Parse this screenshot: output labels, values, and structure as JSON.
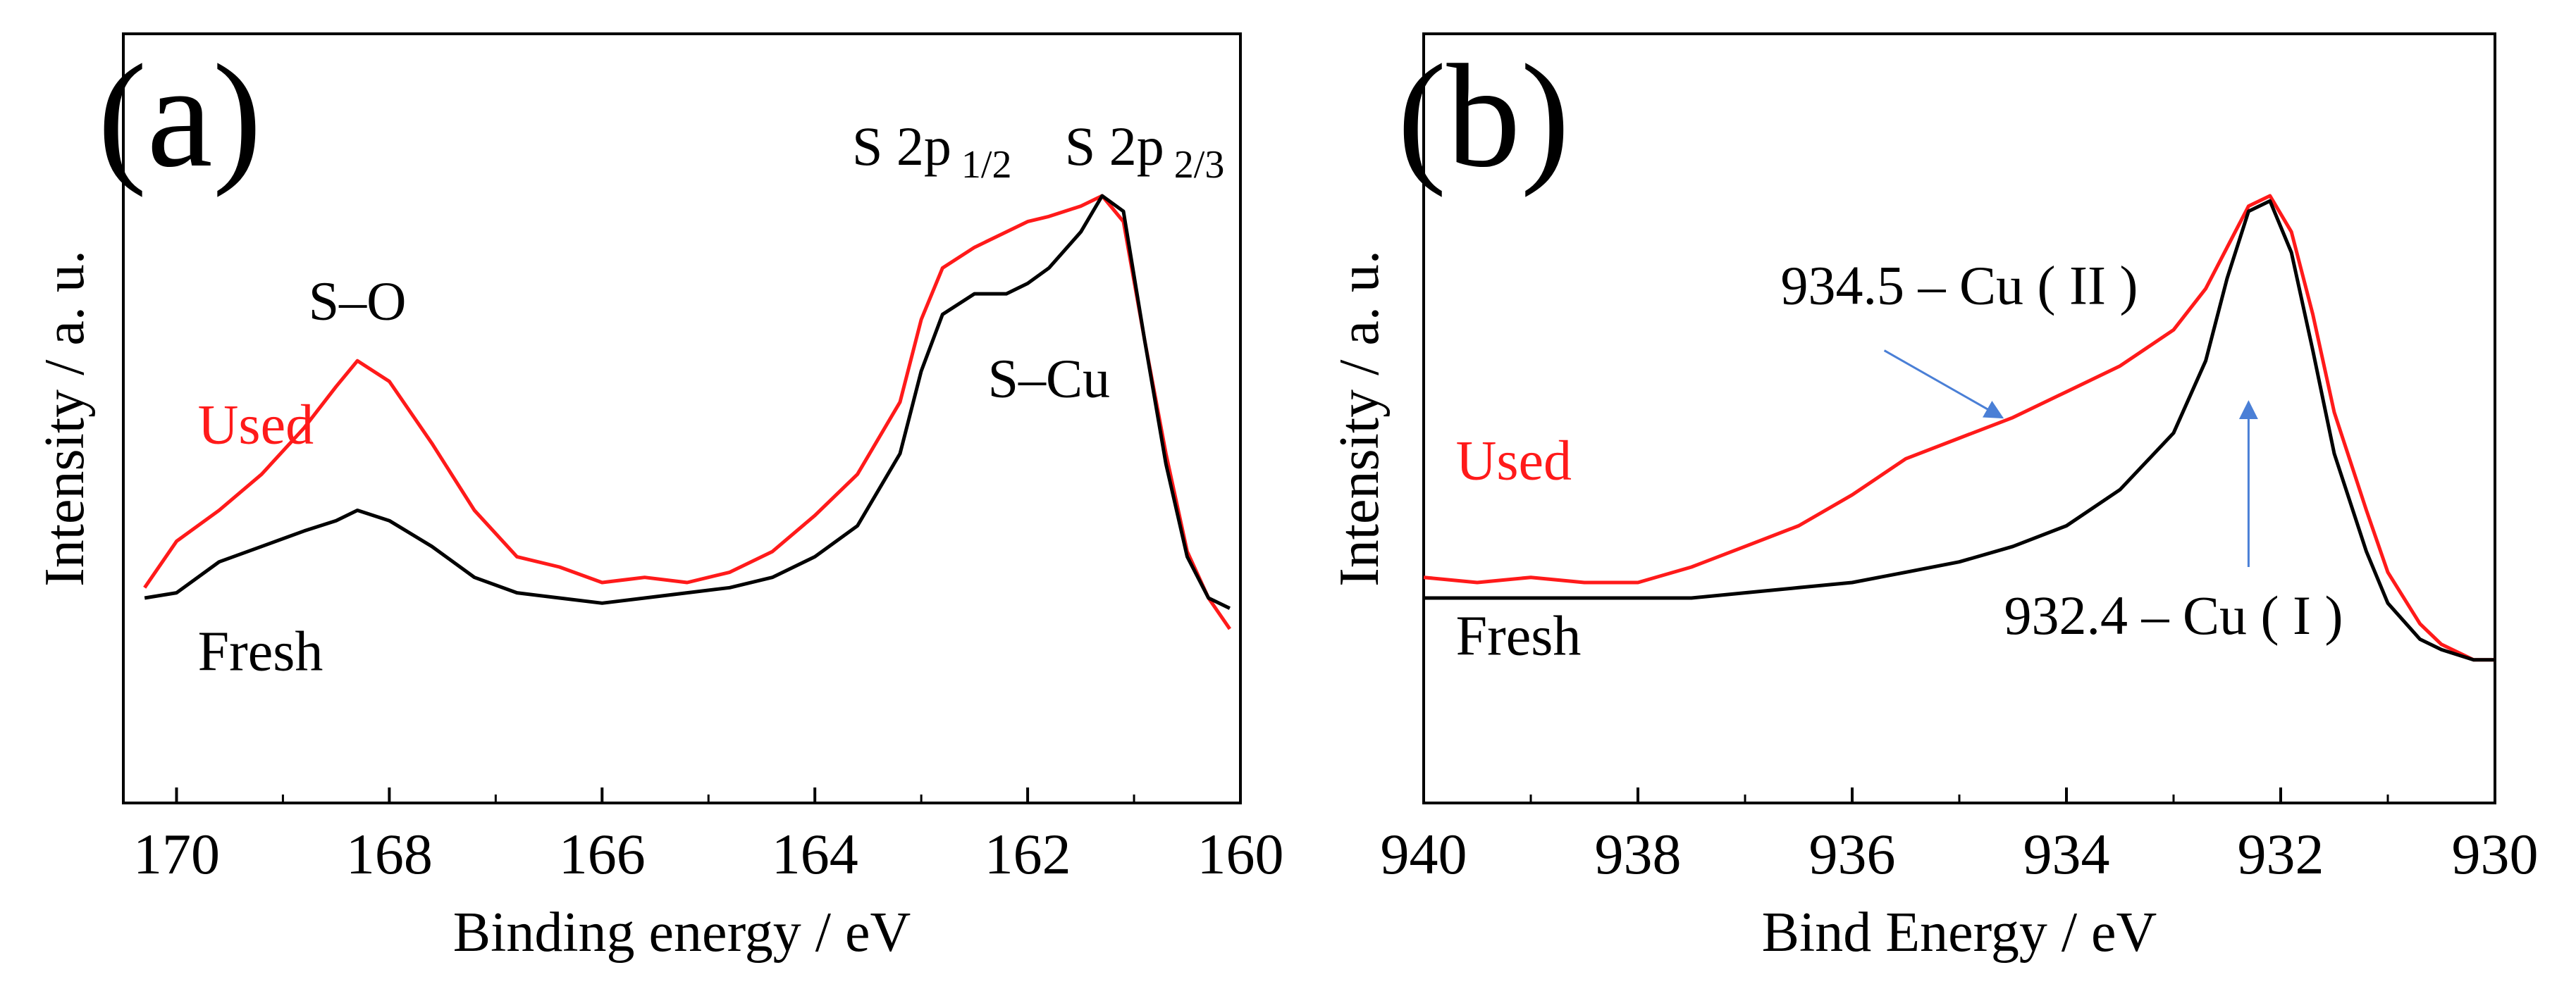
{
  "colors": {
    "used": "#ff1a1a",
    "fresh": "#000000",
    "arrow": "#4a7fd6",
    "axis": "#000000"
  },
  "chart_data": [
    {
      "type": "line",
      "panel_label": "(a)",
      "title": "",
      "xlabel": "Binding energy / eV",
      "ylabel": "Intensity / a. u.",
      "xlim": [
        170.5,
        160
      ],
      "x_reversed": true,
      "ylim": [
        0,
        1
      ],
      "y_ticks_shown": false,
      "xticks": [
        170,
        168,
        166,
        164,
        162,
        160
      ],
      "xtick_labels": [
        "170",
        "168",
        "166",
        "164",
        "162",
        "160"
      ],
      "series": [
        {
          "name": "Used",
          "color": "#ff1a1a",
          "x": [
            170.3,
            170.0,
            169.6,
            169.2,
            168.8,
            168.5,
            168.3,
            168.0,
            167.6,
            167.2,
            166.8,
            166.4,
            166.0,
            165.6,
            165.2,
            164.8,
            164.4,
            164.0,
            163.6,
            163.2,
            163.0,
            162.8,
            162.5,
            162.2,
            162.0,
            161.8,
            161.5,
            161.3,
            161.1,
            160.9,
            160.7,
            160.5,
            160.3,
            160.1
          ],
          "y": [
            0.24,
            0.33,
            0.39,
            0.46,
            0.55,
            0.63,
            0.68,
            0.64,
            0.52,
            0.39,
            0.3,
            0.28,
            0.25,
            0.26,
            0.25,
            0.27,
            0.31,
            0.38,
            0.46,
            0.6,
            0.76,
            0.86,
            0.9,
            0.93,
            0.95,
            0.96,
            0.98,
            1.0,
            0.95,
            0.72,
            0.5,
            0.31,
            0.22,
            0.16
          ]
        },
        {
          "name": "Fresh",
          "color": "#000000",
          "x": [
            170.3,
            170.0,
            169.6,
            169.2,
            168.8,
            168.5,
            168.3,
            168.0,
            167.6,
            167.2,
            166.8,
            166.4,
            166.0,
            165.6,
            165.2,
            164.8,
            164.4,
            164.0,
            163.6,
            163.2,
            163.0,
            162.8,
            162.5,
            162.2,
            162.0,
            161.8,
            161.5,
            161.3,
            161.1,
            160.9,
            160.7,
            160.5,
            160.3,
            160.1
          ],
          "y": [
            0.22,
            0.23,
            0.29,
            0.32,
            0.35,
            0.37,
            0.39,
            0.37,
            0.32,
            0.26,
            0.23,
            0.22,
            0.21,
            0.22,
            0.23,
            0.24,
            0.26,
            0.3,
            0.36,
            0.5,
            0.66,
            0.77,
            0.81,
            0.81,
            0.83,
            0.86,
            0.93,
            1.0,
            0.97,
            0.72,
            0.48,
            0.3,
            0.22,
            0.2
          ]
        }
      ],
      "annotations": [
        {
          "name": "s-o-label",
          "text": "S–O",
          "x": 168.3,
          "y": 0.76
        },
        {
          "name": "s-cu-label",
          "text": "S–Cu",
          "x": 161.8,
          "y": 0.61
        },
        {
          "name": "s2p12-label",
          "text": "S 2p",
          "sub": "1/2",
          "x": 162.9,
          "y": 1.06
        },
        {
          "name": "s2p23-label",
          "text": "S 2p",
          "sub": "2/3",
          "x": 160.9,
          "y": 1.06
        }
      ],
      "legend": [
        {
          "text": "Used",
          "color": "#ff1a1a",
          "x": 169.8,
          "y": 0.52
        },
        {
          "text": "Fresh",
          "color": "#000000",
          "x": 169.8,
          "y": 0.08
        }
      ]
    },
    {
      "type": "line",
      "panel_label": "(b)",
      "title": "",
      "xlabel": "Bind Energy / eV",
      "ylabel": "Intensity / a. u.",
      "xlim": [
        940,
        930
      ],
      "x_reversed": true,
      "ylim": [
        0,
        1
      ],
      "y_ticks_shown": false,
      "xticks": [
        940,
        938,
        936,
        934,
        932,
        930
      ],
      "xtick_labels": [
        "940",
        "938",
        "936",
        "934",
        "932",
        "930"
      ],
      "series": [
        {
          "name": "Used",
          "color": "#ff1a1a",
          "x": [
            940.0,
            939.5,
            939.0,
            938.5,
            938.0,
            937.5,
            937.0,
            936.5,
            936.0,
            935.5,
            935.0,
            934.5,
            934.0,
            933.5,
            933.0,
            932.7,
            932.5,
            932.3,
            932.1,
            931.9,
            931.7,
            931.5,
            931.2,
            931.0,
            930.7,
            930.5,
            930.2,
            930.0
          ],
          "y": [
            0.26,
            0.25,
            0.26,
            0.25,
            0.25,
            0.28,
            0.32,
            0.36,
            0.42,
            0.49,
            0.53,
            0.57,
            0.62,
            0.67,
            0.74,
            0.82,
            0.9,
            0.98,
            1.0,
            0.93,
            0.77,
            0.58,
            0.39,
            0.27,
            0.17,
            0.13,
            0.1,
            0.1
          ]
        },
        {
          "name": "Fresh",
          "color": "#000000",
          "x": [
            940.0,
            939.5,
            939.0,
            938.5,
            938.0,
            937.5,
            937.0,
            936.5,
            936.0,
            935.5,
            935.0,
            934.5,
            934.0,
            933.5,
            933.0,
            932.7,
            932.5,
            932.3,
            932.1,
            931.9,
            931.7,
            931.5,
            931.2,
            931.0,
            930.7,
            930.5,
            930.2,
            930.0
          ],
          "y": [
            0.22,
            0.22,
            0.22,
            0.22,
            0.22,
            0.22,
            0.23,
            0.24,
            0.25,
            0.27,
            0.29,
            0.32,
            0.36,
            0.43,
            0.54,
            0.68,
            0.84,
            0.97,
            0.99,
            0.89,
            0.7,
            0.5,
            0.31,
            0.21,
            0.14,
            0.12,
            0.1,
            0.1
          ]
        }
      ],
      "annotations": [
        {
          "name": "cu-ii-label",
          "text": "934.5 – Cu ( II )",
          "x": 935.0,
          "y": 0.79
        },
        {
          "name": "cu-i-label",
          "text": "932.4 – Cu ( I )",
          "x": 933.0,
          "y": 0.15
        }
      ],
      "arrows": [
        {
          "name": "cu-ii-arrow",
          "x1": 935.7,
          "y1": 0.7,
          "x2": 934.6,
          "y2": 0.57
        },
        {
          "name": "cu-i-arrow",
          "x1": 932.3,
          "y1": 0.28,
          "x2": 932.3,
          "y2": 0.6
        }
      ],
      "legend": [
        {
          "text": "Used",
          "color": "#ff1a1a",
          "x": 939.7,
          "y": 0.45
        },
        {
          "text": "Fresh",
          "color": "#000000",
          "x": 939.7,
          "y": 0.11
        }
      ]
    }
  ]
}
